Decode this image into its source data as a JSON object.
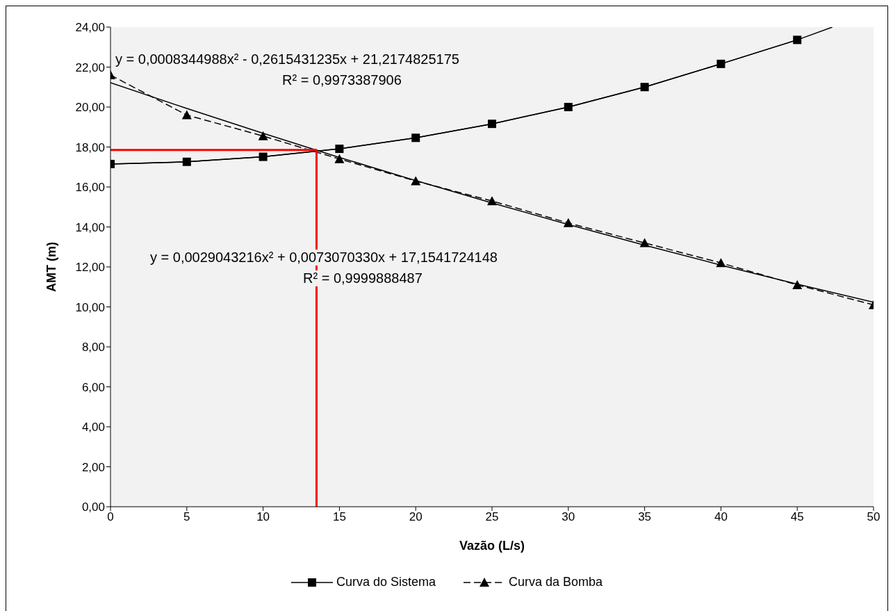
{
  "chart_data": {
    "type": "line",
    "xlabel": "Vazão (L/s)",
    "ylabel": "AMT (m)",
    "xlim": [
      0,
      50
    ],
    "xticks": [
      0,
      5,
      10,
      15,
      20,
      25,
      30,
      35,
      40,
      45,
      50
    ],
    "ylim": [
      0,
      24
    ],
    "yticks": [
      {
        "value": 0,
        "label": "0,00"
      },
      {
        "value": 2,
        "label": "2,00"
      },
      {
        "value": 4,
        "label": "4,00"
      },
      {
        "value": 6,
        "label": "6,00"
      },
      {
        "value": 8,
        "label": "8,00"
      },
      {
        "value": 10,
        "label": "10,00"
      },
      {
        "value": 12,
        "label": "12,00"
      },
      {
        "value": 14,
        "label": "14,00"
      },
      {
        "value": 16,
        "label": "16,00"
      },
      {
        "value": 18,
        "label": "18,00"
      },
      {
        "value": 20,
        "label": "20,00"
      },
      {
        "value": 22,
        "label": "22,00"
      },
      {
        "value": 24,
        "label": "24,00"
      }
    ],
    "grid": false,
    "legend": "bottom",
    "series": [
      {
        "name": "Curva do Sistema",
        "color": "#000000",
        "marker": "square",
        "line_style": "solid",
        "x": [
          0,
          5,
          10,
          15,
          20,
          25,
          30,
          35,
          40,
          45
        ],
        "values": [
          17.15,
          17.26,
          17.51,
          17.91,
          18.46,
          19.16,
          20.0,
          21.0,
          22.16,
          23.36
        ]
      },
      {
        "name": "Curva da Bomba",
        "color": "#000000",
        "marker": "triangle",
        "line_style": "dashed",
        "x": [
          0,
          5,
          10,
          15,
          20,
          25,
          30,
          35,
          40,
          45,
          50
        ],
        "values": [
          21.6,
          19.6,
          18.55,
          17.4,
          16.3,
          15.3,
          14.2,
          13.2,
          12.2,
          11.1,
          10.1
        ]
      },
      {
        "color": "#000000",
        "marker": "none",
        "line_style": "solid",
        "x": [
          0,
          5,
          10,
          15,
          20,
          25,
          30,
          35,
          40,
          45,
          47.3
        ],
        "values": [
          17.15,
          17.26,
          17.51,
          17.91,
          18.46,
          19.16,
          20.0,
          21.0,
          22.16,
          23.36,
          24.0
        ]
      },
      {
        "color": "#000000",
        "marker": "none",
        "line_style": "solid",
        "x": [
          0,
          5,
          10,
          15,
          20,
          25,
          30,
          35,
          40,
          45,
          50
        ],
        "values": [
          21.22,
          19.93,
          18.69,
          17.48,
          16.32,
          15.2,
          14.12,
          13.09,
          12.09,
          11.14,
          10.23
        ]
      },
      {
        "color": "#ff0000",
        "marker": "none",
        "line_style": "solid",
        "x": [
          0,
          13.5,
          13.5
        ],
        "values": [
          17.85,
          17.85,
          0
        ]
      }
    ],
    "annotations": [
      "y = 0,0008344988x² - 0,2615431235x + 21,2174825175",
      "R² = 0,9973387906",
      "y = 0,0029043216x² + 0,0073070330x + 17,1541724148",
      "R² = 0,9999888487"
    ]
  }
}
